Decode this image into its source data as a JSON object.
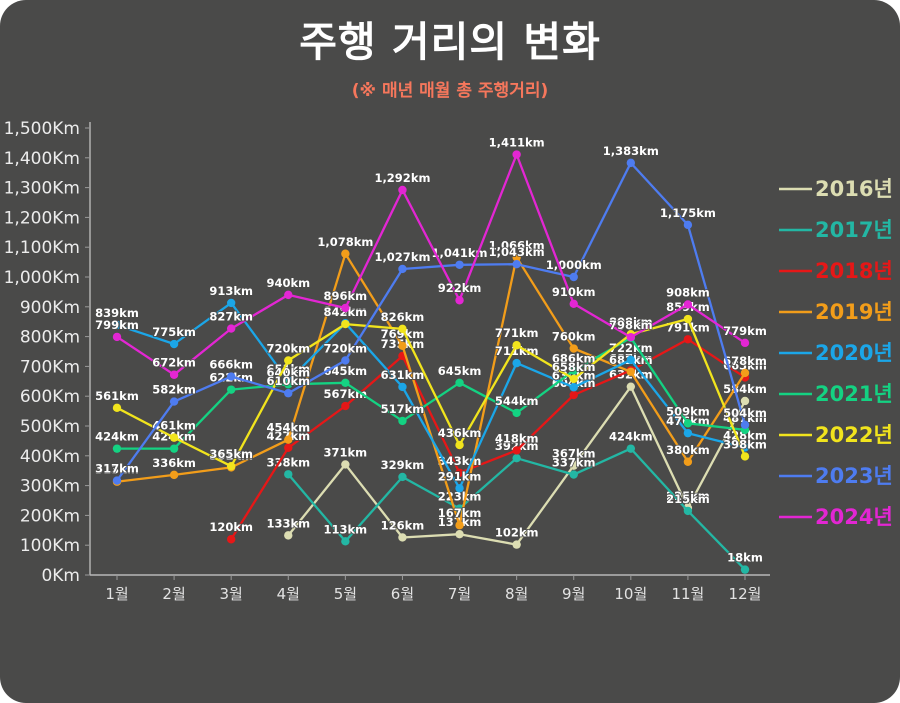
{
  "header": {
    "title": "주행 거리의 변화",
    "subtitle": "(※ 매년 매월 총 주행거리)",
    "title_color": "#ffffff",
    "subtitle_color": "#f6775c"
  },
  "card": {
    "background": "#4a4a49"
  },
  "chart_data": {
    "type": "line",
    "title": "주행 거리의 변화",
    "subtitle": "(※ 매년 매월 총 주행거리)",
    "unit_suffix": "km",
    "x_labels": [
      "1월",
      "2월",
      "3월",
      "4월",
      "5월",
      "6월",
      "7월",
      "8월",
      "9월",
      "10월",
      "11월",
      "12월"
    ],
    "y_axis": {
      "min": 0,
      "max": 1500,
      "step": 100,
      "tick_suffix": "Km"
    },
    "grid": false,
    "legend_position": "right",
    "series": [
      {
        "name": "2016년",
        "color": "#dcddb2",
        "values": [
          null,
          null,
          null,
          133,
          371,
          126,
          137,
          102,
          367,
          632,
          225,
          584
        ]
      },
      {
        "name": "2017년",
        "color": "#23b7a4",
        "values": [
          null,
          null,
          null,
          338,
          113,
          329,
          223,
          392,
          337,
          424,
          215,
          18
        ]
      },
      {
        "name": "2018년",
        "color": "#e61717",
        "values": [
          null,
          null,
          120,
          427,
          567,
          735,
          343,
          418,
          604,
          687,
          791,
          663
        ]
      },
      {
        "name": "2019년",
        "color": "#f29d1a",
        "values": [
          313,
          336,
          361,
          454,
          1078,
          769,
          167,
          1066,
          760,
          682,
          380,
          678
        ]
      },
      {
        "name": "2020년",
        "color": "#1ba6e8",
        "values": [
          839,
          775,
          913,
          651,
          845,
          631,
          291,
          711,
          630,
          722,
          476,
          428
        ]
      },
      {
        "name": "2021년",
        "color": "#14d282",
        "values": [
          424,
          424,
          622,
          640,
          645,
          517,
          645,
          544,
          686,
          796,
          509,
          487
        ]
      },
      {
        "name": "2022년",
        "color": "#f1e41d",
        "values": [
          561,
          461,
          365,
          720,
          842,
          826,
          436,
          771,
          658,
          808,
          859,
          398
        ]
      },
      {
        "name": "2023년",
        "color": "#4e7cf0",
        "values": [
          317,
          582,
          666,
          610,
          720,
          1027,
          1041,
          1043,
          1000,
          1383,
          1175,
          504
        ]
      },
      {
        "name": "2024년",
        "color": "#e326d3",
        "values": [
          799,
          672,
          827,
          940,
          896,
          1292,
          922,
          1411,
          910,
          798,
          908,
          779
        ]
      }
    ]
  }
}
